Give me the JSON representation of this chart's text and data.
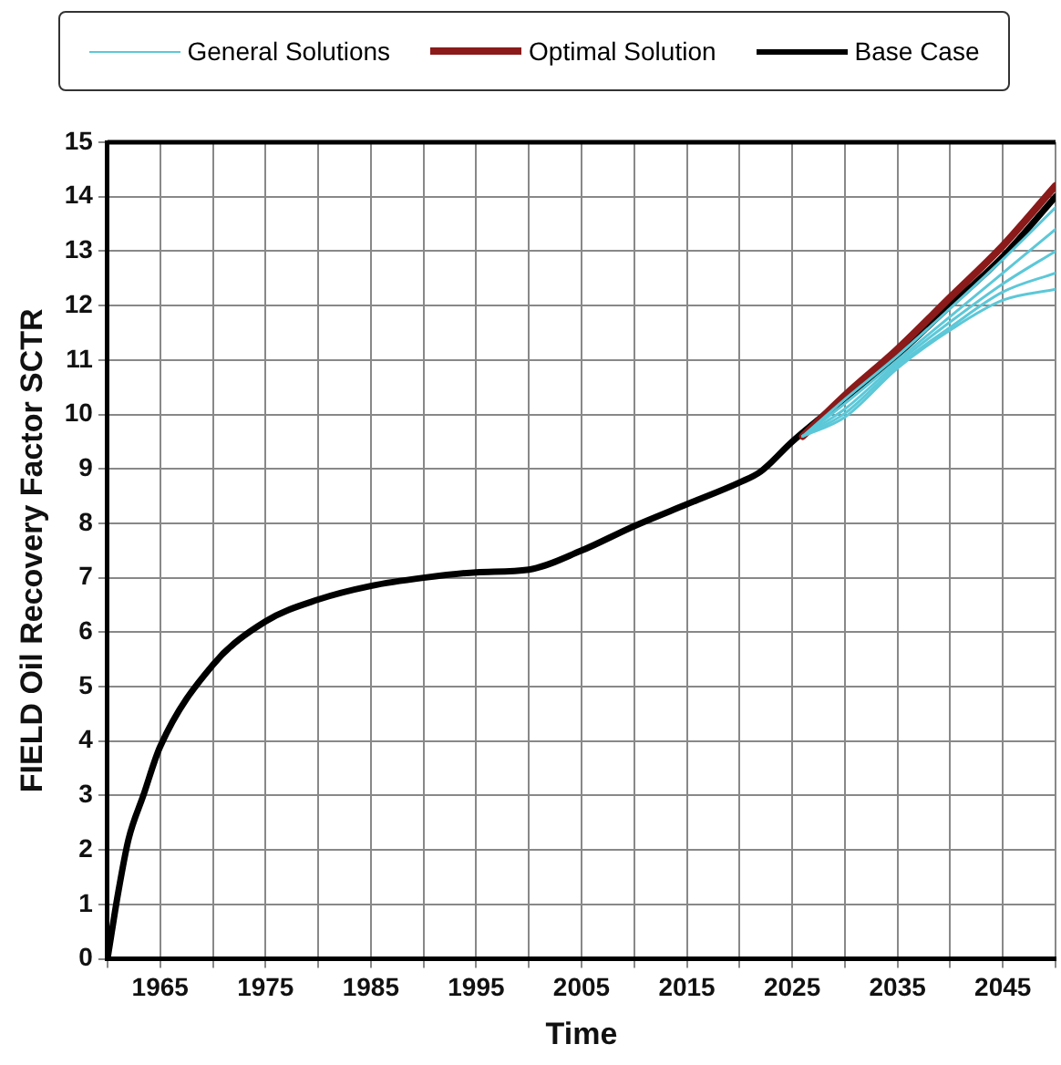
{
  "chart_data": {
    "type": "line",
    "xlabel": "Time",
    "ylabel": "FIELD Oil Recovery Factor SCTR",
    "xlim": [
      1960,
      2050
    ],
    "ylim": [
      0,
      15
    ],
    "xticks": [
      {
        "value": 1960,
        "label": null
      },
      1965,
      {
        "value": 1970,
        "label": null
      },
      1975,
      {
        "value": 1980,
        "label": null
      },
      1985,
      {
        "value": 1990,
        "label": null
      },
      1995,
      {
        "value": 2000,
        "label": null
      },
      2005,
      {
        "value": 2010,
        "label": null
      },
      2015,
      {
        "value": 2020,
        "label": null
      },
      2025,
      {
        "value": 2030,
        "label": null
      },
      2035,
      {
        "value": 2040,
        "label": null
      },
      2045,
      {
        "value": 2050,
        "label": null
      }
    ],
    "yticks": [
      0,
      1,
      2,
      3,
      4,
      5,
      6,
      7,
      8,
      9,
      10,
      11,
      12,
      13,
      14,
      15
    ],
    "grid": true,
    "legend": "top",
    "marker": "none",
    "line_style": "solid",
    "series": [
      {
        "name": "General Solutions",
        "color": "#5cc8d8",
        "x": [
          2026,
          2030,
          2035,
          2040,
          2045,
          2050
        ],
        "values": [
          9.6,
          10.28,
          11.08,
          11.95,
          12.85,
          13.8
        ]
      },
      {
        "color": "#5cc8d8",
        "x": [
          2026,
          2030,
          2035,
          2040,
          2045,
          2050
        ],
        "values": [
          9.6,
          10.2,
          11.0,
          11.8,
          12.6,
          13.4
        ]
      },
      {
        "color": "#5cc8d8",
        "x": [
          2026,
          2030,
          2035,
          2040,
          2045,
          2050
        ],
        "values": [
          9.6,
          10.1,
          10.95,
          11.7,
          12.4,
          13.0
        ]
      },
      {
        "color": "#5cc8d8",
        "x": [
          2026,
          2030,
          2035,
          2040,
          2045,
          2050
        ],
        "values": [
          9.6,
          10.02,
          10.9,
          11.6,
          12.25,
          12.6
        ]
      },
      {
        "color": "#5cc8d8",
        "x": [
          2026,
          2030,
          2035,
          2040,
          2045,
          2050
        ],
        "values": [
          9.6,
          9.95,
          10.85,
          11.55,
          12.1,
          12.3
        ]
      },
      {
        "name": "Optimal Solution",
        "color": "#8b1a1a",
        "x": [
          2026,
          2030,
          2035,
          2040,
          2045,
          2050
        ],
        "values": [
          9.6,
          10.35,
          11.2,
          12.15,
          13.1,
          14.2
        ]
      },
      {
        "name": "Base Case",
        "color": "#000000",
        "x": [
          1960,
          1961,
          1962,
          1963.4,
          1965,
          1970,
          1975,
          1980,
          1985,
          1990,
          1995,
          2000,
          2005,
          2010,
          2015,
          2020,
          2022,
          2025,
          2030,
          2035,
          2040,
          2045,
          2050
        ],
        "values": [
          0,
          1.2,
          2.2,
          3,
          3.9,
          5.4,
          6.2,
          6.6,
          6.85,
          7.0,
          7.1,
          7.15,
          7.5,
          7.95,
          8.35,
          8.75,
          8.95,
          9.5,
          10.3,
          11.1,
          12.0,
          12.9,
          14.0
        ]
      }
    ]
  }
}
